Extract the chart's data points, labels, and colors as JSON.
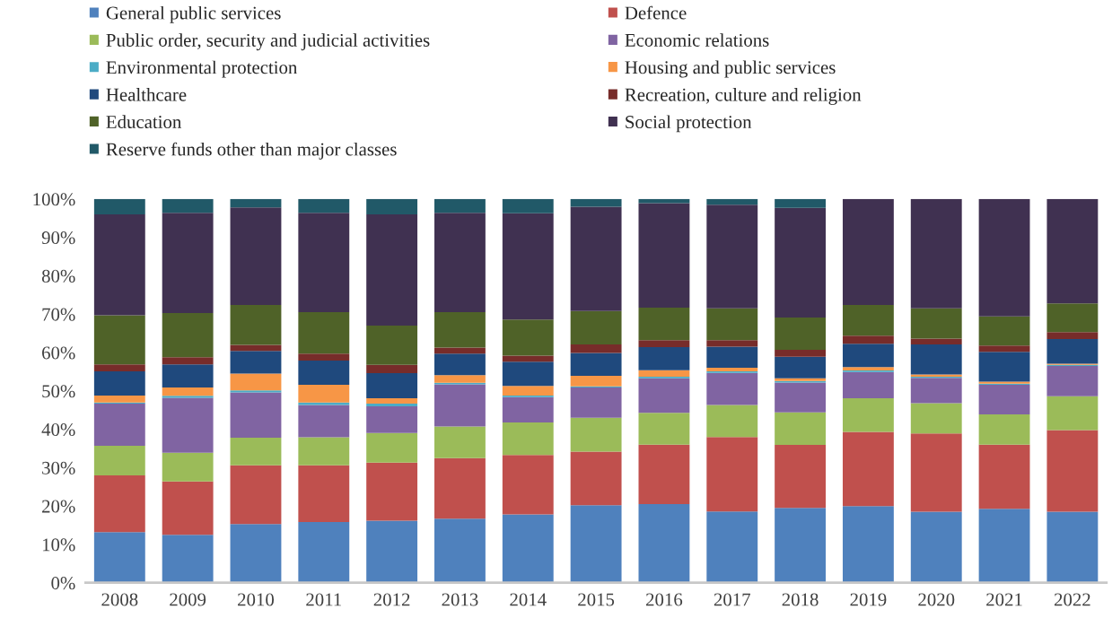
{
  "chart_data": {
    "type": "bar",
    "stacked": true,
    "categories": [
      "2008",
      "2009",
      "2010",
      "2011",
      "2012",
      "2013",
      "2014",
      "2015",
      "2016",
      "2017",
      "2018",
      "2019",
      "2020",
      "2021",
      "2022"
    ],
    "ylim": [
      0,
      100
    ],
    "yticks": [
      {
        "value": 0,
        "label": "0%"
      },
      {
        "value": 10,
        "label": "10%"
      },
      {
        "value": 20,
        "label": "20%"
      },
      {
        "value": 30,
        "label": "30%"
      },
      {
        "value": 40,
        "label": "40%"
      },
      {
        "value": 50,
        "label": "50%"
      },
      {
        "value": 60,
        "label": "60%"
      },
      {
        "value": 70,
        "label": "70%"
      },
      {
        "value": 80,
        "label": "80%"
      },
      {
        "value": 90,
        "label": "90%"
      },
      {
        "value": 100,
        "label": "100%"
      }
    ],
    "grid": false,
    "legend": "top",
    "series": [
      {
        "name": "General public services",
        "color": "#4f81bd",
        "values": [
          13.2,
          12.5,
          15.3,
          15.8,
          16.2,
          16.7,
          17.8,
          20.2,
          20.5,
          18.6,
          19.5,
          20.0,
          18.5,
          19.3,
          18.5
        ]
      },
      {
        "name": "Defence",
        "color": "#c0504d",
        "values": [
          14.8,
          13.9,
          15.3,
          14.8,
          15.1,
          15.8,
          15.5,
          14.0,
          15.5,
          19.4,
          16.4,
          19.3,
          20.4,
          16.7,
          21.3
        ]
      },
      {
        "name": "Public order, security and judicial activities",
        "color": "#9bbb59",
        "values": [
          7.7,
          7.5,
          7.2,
          7.3,
          7.7,
          8.2,
          8.5,
          8.8,
          8.3,
          8.3,
          8.5,
          8.8,
          7.9,
          7.9,
          8.8
        ]
      },
      {
        "name": "Economic relations",
        "color": "#8064a2",
        "values": [
          11.0,
          14.3,
          11.8,
          8.4,
          7.0,
          11.0,
          6.6,
          7.9,
          9.0,
          8.4,
          7.8,
          6.8,
          6.6,
          7.7,
          7.9
        ]
      },
      {
        "name": "Environmental protection",
        "color": "#4bacc6",
        "values": [
          0.3,
          0.5,
          0.5,
          0.7,
          0.7,
          0.4,
          0.4,
          0.3,
          0.4,
          0.4,
          0.4,
          0.4,
          0.3,
          0.3,
          0.3
        ]
      },
      {
        "name": "Housing and public services",
        "color": "#f79646",
        "values": [
          1.8,
          2.2,
          4.4,
          4.6,
          1.4,
          2.0,
          2.5,
          2.7,
          1.7,
          0.9,
          0.7,
          0.9,
          0.6,
          0.5,
          0.3
        ]
      },
      {
        "name": "Healthcare",
        "color": "#1f497d",
        "values": [
          6.3,
          6.0,
          5.9,
          6.3,
          6.5,
          5.6,
          6.3,
          6.0,
          6.0,
          5.5,
          5.6,
          6.1,
          7.8,
          7.8,
          6.4
        ]
      },
      {
        "name": "Recreation, culture and religion",
        "color": "#772c2a",
        "values": [
          1.8,
          1.9,
          1.6,
          1.8,
          2.2,
          1.6,
          1.6,
          2.2,
          1.8,
          1.7,
          1.8,
          2.1,
          1.5,
          1.6,
          1.8
        ]
      },
      {
        "name": "Education",
        "color": "#4f6228",
        "values": [
          12.8,
          11.5,
          10.4,
          10.8,
          10.2,
          9.2,
          9.4,
          8.7,
          8.5,
          8.3,
          8.4,
          8.0,
          7.9,
          7.6,
          7.5
        ]
      },
      {
        "name": "Social protection",
        "color": "#403151",
        "values": [
          26.3,
          26.1,
          25.4,
          25.9,
          29.0,
          25.9,
          27.7,
          27.2,
          27.2,
          27.0,
          28.6,
          27.6,
          28.5,
          30.6,
          27.2
        ]
      },
      {
        "name": "Reserve funds other than major classes",
        "color": "#215968",
        "values": [
          4.0,
          3.6,
          2.2,
          3.6,
          4.0,
          3.6,
          3.7,
          2.0,
          1.1,
          1.5,
          2.3,
          null,
          null,
          null,
          null
        ]
      }
    ]
  }
}
